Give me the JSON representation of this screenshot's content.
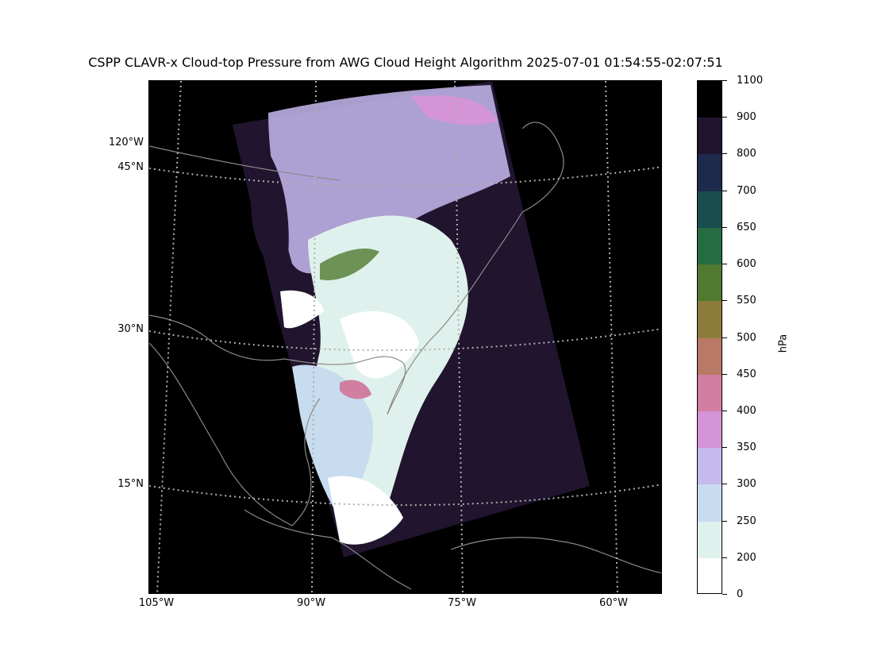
{
  "title": "CSPP CLAVR-x Cloud-top Pressure from AWG Cloud Height Algorithm 2025-07-01 01:54:55-02:07:51",
  "map": {
    "lat_labels": [
      "120°W",
      "45°N",
      "30°N",
      "15°N"
    ],
    "lon_labels": [
      "105°W",
      "90°W",
      "75°W",
      "60°W"
    ],
    "graticule": "dotted",
    "background_color": "#000000"
  },
  "colorbar": {
    "unit": "hPa",
    "tick_labels": [
      "1100",
      "900",
      "800",
      "700",
      "650",
      "600",
      "550",
      "500",
      "450",
      "400",
      "350",
      "300",
      "250",
      "200",
      "0"
    ],
    "bins": [
      {
        "from": 0,
        "to": 200,
        "color": "#ffffff"
      },
      {
        "from": 200,
        "to": 250,
        "color": "#dff1ec"
      },
      {
        "from": 250,
        "to": 300,
        "color": "#c7dcee"
      },
      {
        "from": 300,
        "to": 350,
        "color": "#c5b9ee"
      },
      {
        "from": 350,
        "to": 400,
        "color": "#d494d6"
      },
      {
        "from": 400,
        "to": 450,
        "color": "#d17ea1"
      },
      {
        "from": 450,
        "to": 500,
        "color": "#b87966"
      },
      {
        "from": 500,
        "to": 550,
        "color": "#8c7c3c"
      },
      {
        "from": 550,
        "to": 600,
        "color": "#4f7a30"
      },
      {
        "from": 600,
        "to": 650,
        "color": "#266c40"
      },
      {
        "from": 650,
        "to": 700,
        "color": "#1a4e4e"
      },
      {
        "from": 700,
        "to": 800,
        "color": "#1c2b4c"
      },
      {
        "from": 800,
        "to": 900,
        "color": "#21142e"
      },
      {
        "from": 900,
        "to": 1100,
        "color": "#000000"
      }
    ]
  }
}
